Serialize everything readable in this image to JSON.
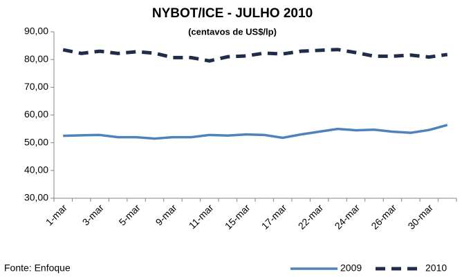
{
  "chart_data": {
    "type": "line",
    "title": "NYBOT/ICE -  JULHO 2010",
    "subtitle": "(centavos de US$/lp)",
    "source": "Fonte: Enfoque",
    "categories": [
      "1-mar",
      null,
      "3-mar",
      null,
      "5-mar",
      null,
      "9-mar",
      null,
      "11-mar",
      null,
      "15-mar",
      null,
      "17-mar",
      null,
      "22-mar",
      null,
      "24-mar",
      null,
      "26-mar",
      null,
      "30-mar",
      null
    ],
    "series": [
      {
        "name": "2009",
        "color": "#4f81bd",
        "dash": "solid",
        "values": [
          52.5,
          52.7,
          52.8,
          52.0,
          52.0,
          51.5,
          52.0,
          52.0,
          52.8,
          52.6,
          53.0,
          52.8,
          51.8,
          53.0,
          54.0,
          55.0,
          54.5,
          54.7,
          54.0,
          53.6,
          54.6,
          56.4
        ]
      },
      {
        "name": "2010",
        "color": "#1f2d4a",
        "dash": "dashed",
        "values": [
          83.5,
          82.2,
          83.0,
          82.2,
          82.8,
          82.3,
          80.7,
          80.7,
          79.5,
          81.0,
          81.3,
          82.3,
          82.0,
          83.0,
          83.3,
          83.6,
          82.5,
          81.2,
          81.2,
          81.6,
          80.9,
          81.8
        ]
      }
    ],
    "ylim": [
      30,
      90
    ],
    "yticks": [
      {
        "value": 30,
        "label": "30,00"
      },
      {
        "value": 40,
        "label": "40,00"
      },
      {
        "value": 50,
        "label": "50,00"
      },
      {
        "value": 60,
        "label": "60,00"
      },
      {
        "value": 70,
        "label": "70,00"
      },
      {
        "value": 80,
        "label": "80,00"
      },
      {
        "value": 90,
        "label": "90,00"
      }
    ],
    "grid": false,
    "legend": "bottom-right"
  }
}
